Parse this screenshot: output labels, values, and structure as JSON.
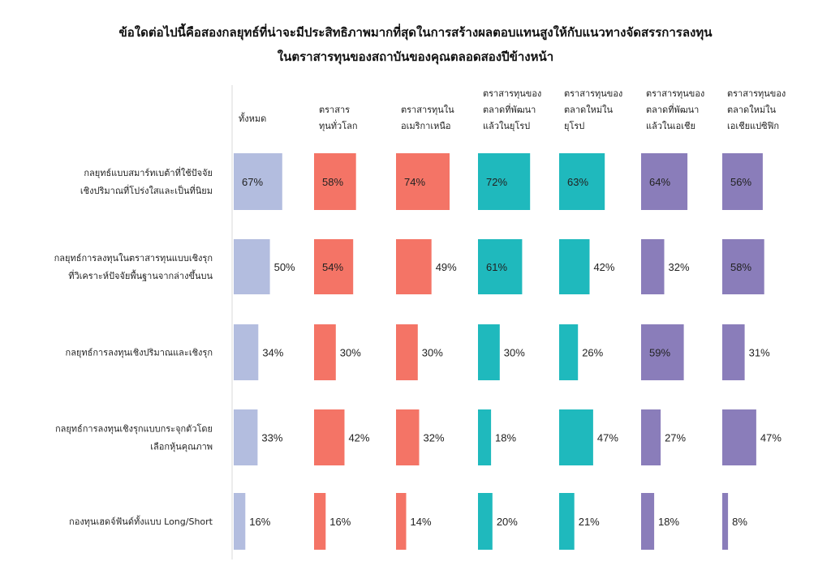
{
  "title_line1": "ข้อใดต่อไปนี้คือสองกลยุทธ์ที่น่าจะมีประสิทธิภาพมากที่สุดในการสร้างผลตอบแทนสูงให้กับแนวทางจัดสรรการลงทุน",
  "title_line2": "ในตราสารทุนของสถาบันของคุณตลอดสองปีข้างหน้า",
  "chart_data": {
    "type": "table",
    "unit": "%",
    "columns": [
      {
        "label": [
          "ทั้งหมด"
        ],
        "color": "#b3bddf"
      },
      {
        "label": [
          "ตราสาร",
          "ทุนทั่วโลก"
        ],
        "color": "#f47466"
      },
      {
        "label": [
          "ตราสารทุนใน",
          "อเมริกาเหนือ"
        ],
        "color": "#f47466"
      },
      {
        "label": [
          "ตราสารทุนของ",
          "ตลาดที่พัฒนา",
          "แล้วในยุโรป"
        ],
        "color": "#1fb9bd"
      },
      {
        "label": [
          "ตราสารทุนของ",
          "ตลาดใหม่ใน",
          "ยุโรป"
        ],
        "color": "#1fb9bd"
      },
      {
        "label": [
          "ตราสารทุนของ",
          "ตลาดที่พัฒนา",
          "แล้วในเอเชีย"
        ],
        "color": "#8a7dba"
      },
      {
        "label": [
          "ตราสารทุนของ",
          "ตลาดใหม่ใน",
          "เอเชียแปซิฟิก"
        ],
        "color": "#8a7dba"
      }
    ],
    "rows": [
      {
        "label": [
          "กลยุทธ์แบบสมาร์ทเบต้าที่ใช้ปัจจัย",
          "เชิงปริมาณที่โปร่งใสและเป็นที่นิยม"
        ],
        "values": [
          67,
          58,
          74,
          72,
          63,
          64,
          56
        ]
      },
      {
        "label": [
          "กลยุทธ์การลงทุนในตราสารทุนแบบเชิงรุก",
          "ที่วิเคราะห์ปัจจัยพื้นฐานจากล่างขึ้นบน"
        ],
        "values": [
          50,
          54,
          49,
          61,
          42,
          32,
          58
        ]
      },
      {
        "label": [
          "กลยุทธ์การลงทุนเชิงปริมาณและเชิงรุก"
        ],
        "values": [
          34,
          30,
          30,
          30,
          26,
          59,
          31
        ]
      },
      {
        "label": [
          "กลยุทธ์การลงทุนเชิงรุกแบบกระจุกตัวโดย",
          "เลือกหุ้นคุณภาพ"
        ],
        "values": [
          33,
          42,
          32,
          18,
          47,
          27,
          47
        ]
      },
      {
        "label": [
          "กองทุนเฮดจ์ฟันด์ทั้งแบบ Long/Short"
        ],
        "values": [
          16,
          16,
          14,
          20,
          21,
          18,
          8
        ]
      }
    ]
  }
}
